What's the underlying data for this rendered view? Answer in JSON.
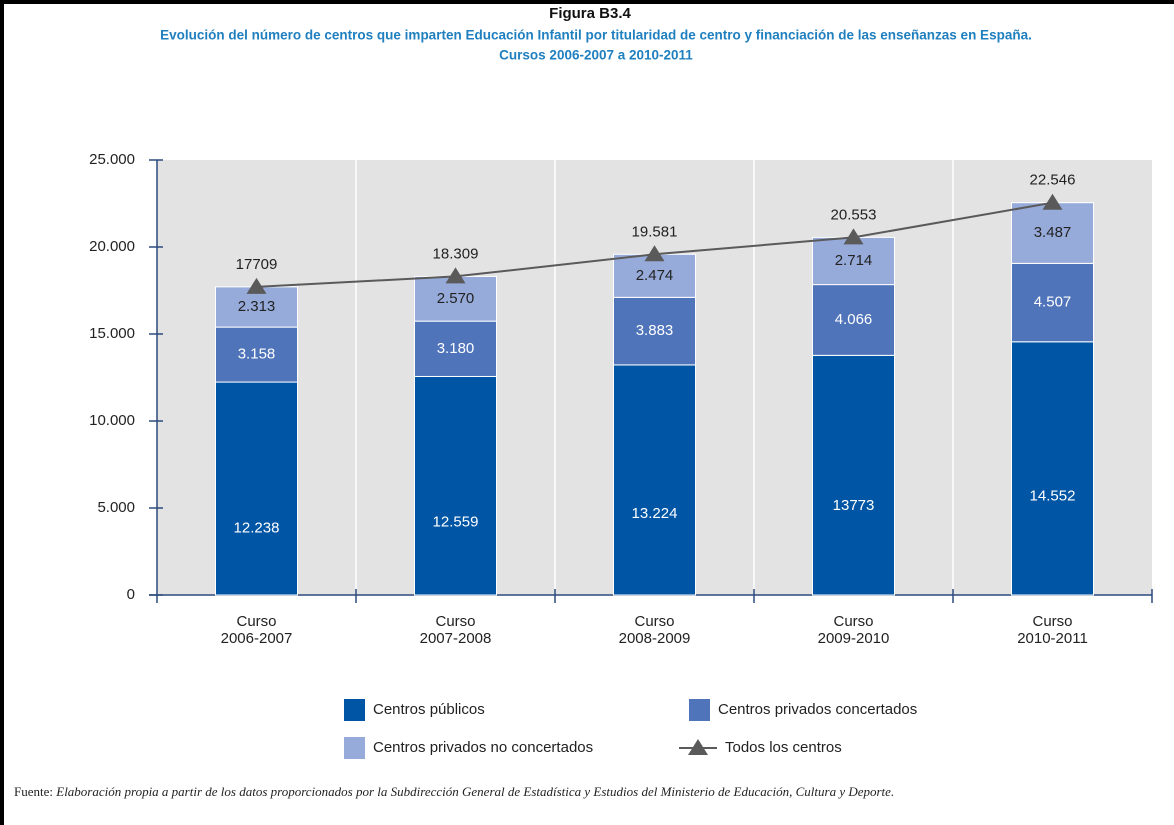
{
  "chart_data": {
    "type": "stacked_bar_line",
    "title": "Figura B3.4",
    "subtitle": [
      "Evolución del número de centros que imparten Educación Infantil por titularidad de centro y financiación de las enseñanzas en España.",
      "Cursos 2006-2007 a 2010-2011"
    ],
    "categories": [
      "Curso 2006-2007",
      "Curso 2007-2008",
      "Curso 2008-2009",
      "Curso 2009-2010",
      "Curso 2010-2011"
    ],
    "series": [
      {
        "name": "Centros públicos",
        "color": "#0055a5",
        "values": [
          12238,
          12559,
          13224,
          13773,
          14552
        ],
        "value_labels": [
          "12.238",
          "12.559",
          "13.224",
          "13773",
          "14.552"
        ]
      },
      {
        "name": "Centros privados concertados",
        "color": "#4f74ba",
        "values": [
          3158,
          3180,
          3883,
          4066,
          4507
        ],
        "value_labels": [
          "3.158",
          "3.180",
          "3.883",
          "4.066",
          "4.507"
        ]
      },
      {
        "name": "Centros privados no concertados",
        "color": "#97abdb",
        "values": [
          2313,
          2570,
          2474,
          2714,
          3487
        ],
        "value_labels": [
          "2.313",
          "2.570",
          "2.474",
          "2.714",
          "3.487"
        ]
      },
      {
        "name": "Todos los centros",
        "color": "#5a5a5a",
        "kind": "line",
        "values": [
          17709,
          18309,
          19581,
          20553,
          22546
        ],
        "value_labels": [
          "17709",
          "18.309",
          "19.581",
          "20.553",
          "22.546"
        ]
      }
    ],
    "ylim": [
      0,
      25000
    ],
    "yticks": [
      0,
      {
        "value": 5000,
        "label": "5.000"
      },
      {
        "value": 10000,
        "label": "10.000"
      },
      {
        "value": 15000,
        "label": "15.000"
      },
      {
        "value": 20000,
        "label": "20.000"
      },
      {
        "value": 25000,
        "label": "25.000"
      }
    ],
    "source_label": "Fuente:",
    "source": "Elaboración propia a partir de los datos proporcionados por la Subdirección General de Estadística y Estudios del Ministerio de Educación, Cultura y Deporte."
  }
}
